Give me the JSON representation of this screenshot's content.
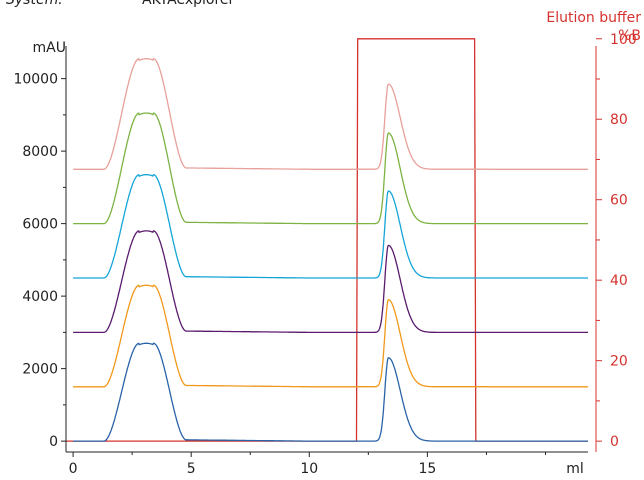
{
  "header": {
    "system_label": "System:",
    "system_value": "ÄKTAexplorer"
  },
  "chart_data": {
    "type": "line",
    "xlabel": "ml",
    "ylabel_left": "mAU",
    "ylabel_right_line1": "Elution buffer",
    "ylabel_right_line2": "%B",
    "xlim": [
      -0.3,
      21.8
    ],
    "xticks": [
      0,
      5,
      10,
      15
    ],
    "ylim_left": [
      -300,
      10900
    ],
    "yticks_left": [
      0,
      2000,
      4000,
      6000,
      8000,
      10000
    ],
    "ylim_right": [
      -2.7,
      98.2
    ],
    "yticks_right": [
      0,
      20,
      40,
      60,
      80,
      100
    ],
    "grid": false,
    "colors": {
      "axis": "#222222",
      "right_axis": "#d4332f"
    },
    "elution_buffer": {
      "color": "#d4332f",
      "x": [
        -0.3,
        12.0,
        12.05,
        17.0,
        17.05,
        21.8
      ],
      "y": [
        0,
        0,
        100,
        100,
        0,
        0
      ]
    },
    "series": [
      {
        "color": "#2a63a8",
        "baseline": 0,
        "peak1_max": 2700,
        "peak2_max": 2300
      },
      {
        "color": "#f0981a",
        "baseline": 1500,
        "peak1_max": 4300,
        "peak2_max": 3900
      },
      {
        "color": "#5a1a6e",
        "baseline": 3000,
        "peak1_max": 5800,
        "peak2_max": 5400
      },
      {
        "color": "#14a5d8",
        "baseline": 4500,
        "peak1_max": 7350,
        "peak2_max": 6900
      },
      {
        "color": "#7cb342",
        "baseline": 6000,
        "peak1_max": 9050,
        "peak2_max": 8500
      },
      {
        "color": "#e8a09a",
        "baseline": 7500,
        "peak1_max": 10550,
        "peak2_max": 9850
      }
    ],
    "peak1": {
      "start": 1.3,
      "end": 4.8,
      "top_start": 2.8,
      "top_end": 3.4,
      "tail_ml": 10.0,
      "tail_value": 40
    },
    "peak2": {
      "center": 13.35,
      "rise": 0.15,
      "fall": 0.5
    }
  }
}
